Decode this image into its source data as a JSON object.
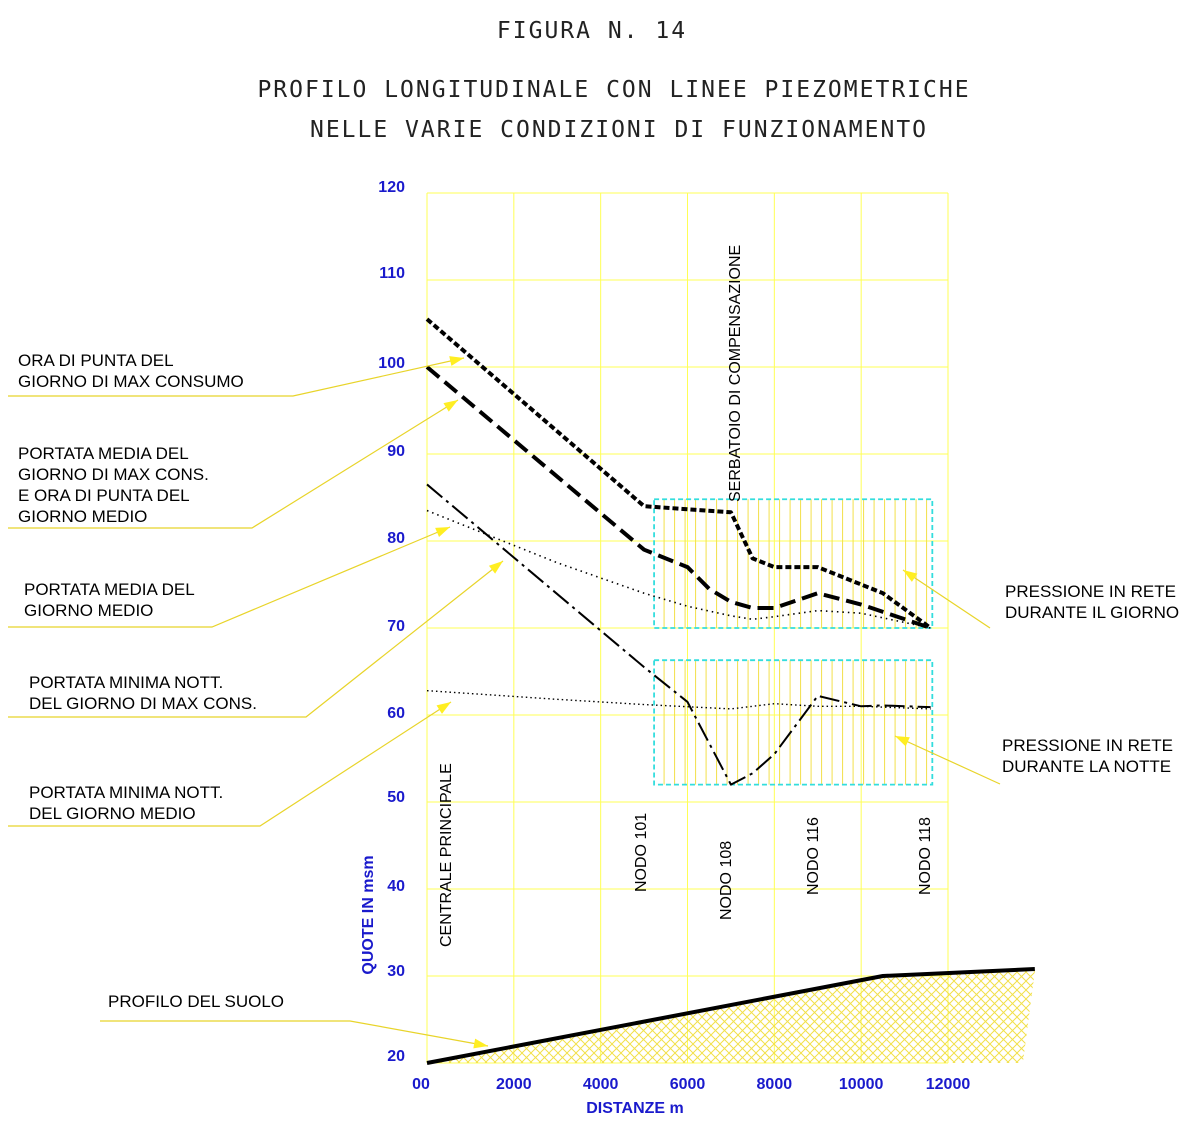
{
  "figure": {
    "number": "FIGURA N. 14",
    "title_line1": "PROFILO LONGITUDINALE CON LINEE PIEZOMETRICHE",
    "title_line2": "NELLE VARIE CONDIZIONI DI FUNZIONAMENTO"
  },
  "colors": {
    "grid": "#ffff55",
    "hatch": "#f2e04a",
    "box": "#33dddd",
    "axis_text": "#1a1acc",
    "ink": "#000000"
  },
  "annotations": {
    "ora_punta_max": [
      "ORA DI PUNTA DEL",
      "GIORNO DI MAX CONSUMO"
    ],
    "media_max": [
      "PORTATA MEDIA  DEL",
      "GIORNO DI MAX CONS.",
      "E ORA DI PUNTA DEL",
      "GIORNO MEDIO"
    ],
    "media_medio": [
      "PORTATA MEDIA DEL",
      "GIORNO MEDIO"
    ],
    "min_nott_max": [
      "PORTATA MINIMA NOTT.",
      "DEL GIORNO DI MAX CONS."
    ],
    "min_nott_medio": [
      "PORTATA MINIMA NOTT.",
      "DEL GIORNO MEDIO"
    ],
    "profilo_suolo": [
      "PROFILO DEL SUOLO"
    ],
    "pressione_giorno": [
      "PRESSIONE IN RETE",
      "DURANTE IL GIORNO"
    ],
    "pressione_notte": [
      "PRESSIONE IN RETE",
      "DURANTE LA NOTTE"
    ]
  },
  "chart_data": {
    "type": "line",
    "title": "PROFILO LONGITUDINALE CON LINEE PIEZOMETRICHE NELLE VARIE CONDIZIONI DI FUNZIONAMENTO",
    "xlabel": "DISTANZE m",
    "ylabel": "QUOTE IN msm",
    "xlim": [
      0,
      12000
    ],
    "ylim": [
      20,
      120
    ],
    "xticks": [
      0,
      2000,
      4000,
      6000,
      8000,
      10000,
      12000
    ],
    "xtick_labels": [
      "00",
      "2000",
      "4000",
      "6000",
      "8000",
      "10000",
      "12000"
    ],
    "yticks": [
      20,
      30,
      40,
      50,
      60,
      70,
      80,
      90,
      100,
      110,
      120
    ],
    "grid": true,
    "series": [
      {
        "name": "ORA DI PUNTA DEL GIORNO DI MAX CONSUMO",
        "style": "short-dash-heavy",
        "x": [
          0,
          5000,
          7000,
          7500,
          8000,
          9000,
          10500,
          11600
        ],
        "y": [
          105.5,
          84,
          83.3,
          78,
          77,
          77,
          74,
          70
        ]
      },
      {
        "name": "PORTATA MEDIA DEL GIORNO DI MAX CONS. E ORA DI PUNTA DEL GIORNO MEDIO",
        "style": "long-dash-heavy",
        "x": [
          0,
          5000,
          6000,
          6500,
          7000,
          7500,
          8000,
          9000,
          10000,
          11600
        ],
        "y": [
          100,
          79,
          77,
          74.5,
          73,
          72.3,
          72.3,
          74,
          72.7,
          70
        ]
      },
      {
        "name": "PORTATA MEDIA DEL GIORNO MEDIO",
        "style": "dotted",
        "x": [
          0,
          1500,
          3000,
          5000,
          6000,
          7000,
          7500,
          8000,
          9000,
          10000,
          11600
        ],
        "y": [
          83.5,
          80.5,
          77.5,
          74,
          72.5,
          71.4,
          71,
          71.3,
          72,
          71.7,
          70
        ]
      },
      {
        "name": "PORTATA MINIMA NOTT. DEL GIORNO DI MAX CONS.",
        "style": "dash-dot",
        "x": [
          0,
          5000,
          6000,
          7000,
          7500,
          8000,
          9000,
          10000,
          10500,
          11600
        ],
        "y": [
          86.5,
          65.5,
          61.5,
          52,
          53.3,
          55.5,
          62.2,
          61,
          61.1,
          60.9
        ]
      },
      {
        "name": "PORTATA MINIMA NOTT. DEL GIORNO MEDIO",
        "style": "fine-dotted",
        "x": [
          0,
          3000,
          5000,
          7000,
          8000,
          9000,
          10000,
          11600
        ],
        "y": [
          62.8,
          61.8,
          61.2,
          60.7,
          61.3,
          61,
          61,
          60.7
        ]
      },
      {
        "name": "PROFILO DEL SUOLO",
        "style": "solid-heavy",
        "x": [
          0,
          10500,
          14000
        ],
        "y": [
          20,
          30,
          30.8
        ]
      }
    ],
    "vertical_labels": [
      {
        "x": 0,
        "text": "CENTRALE PRINCIPALE"
      },
      {
        "x": 5000,
        "text": "NODO 101"
      },
      {
        "x": 7000,
        "text": "NODO 108"
      },
      {
        "x": 9000,
        "text": "NODO 116"
      },
      {
        "x": 11600,
        "text": "NODO 118"
      },
      {
        "x": 7000,
        "text": "SERBATOIO DI COMPENSAZIONE"
      }
    ],
    "regions": [
      {
        "name": "PRESSIONE IN RETE DURANTE IL GIORNO",
        "x": [
          5000,
          11800
        ],
        "y": [
          70,
          84.8
        ]
      },
      {
        "name": "PRESSIONE IN RETE DURANTE LA NOTTE",
        "x": [
          5000,
          11800
        ],
        "y": [
          52,
          66.3
        ]
      }
    ]
  }
}
